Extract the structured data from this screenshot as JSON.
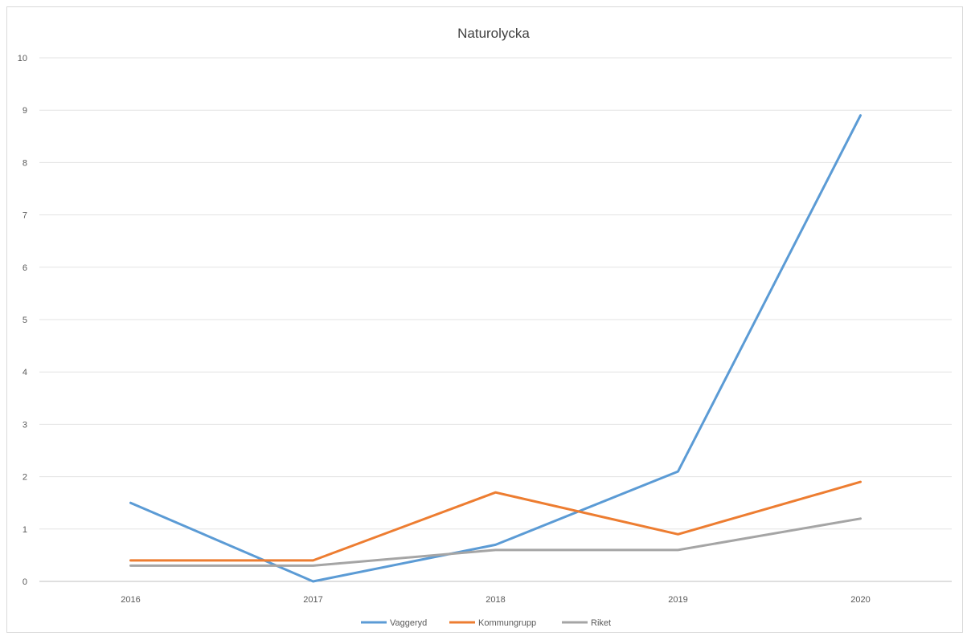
{
  "chart_data": {
    "type": "line",
    "title": "Naturolycka",
    "xlabel": "",
    "ylabel": "",
    "categories": [
      "2016",
      "2017",
      "2018",
      "2019",
      "2020"
    ],
    "ylim": [
      0,
      10
    ],
    "yticks": [
      "0",
      "1",
      "2",
      "3",
      "4",
      "5",
      "6",
      "7",
      "8",
      "9",
      "10"
    ],
    "grid": true,
    "legend_position": "bottom",
    "series": [
      {
        "name": "Vaggeryd",
        "color": "#5b9bd5",
        "values": [
          1.5,
          0.0,
          0.7,
          2.1,
          8.9
        ]
      },
      {
        "name": "Kommungrupp",
        "color": "#ed7d31",
        "values": [
          0.4,
          0.4,
          1.7,
          0.9,
          1.9
        ]
      },
      {
        "name": "Riket",
        "color": "#a5a5a5",
        "values": [
          0.3,
          0.3,
          0.6,
          0.6,
          1.2
        ]
      }
    ]
  }
}
